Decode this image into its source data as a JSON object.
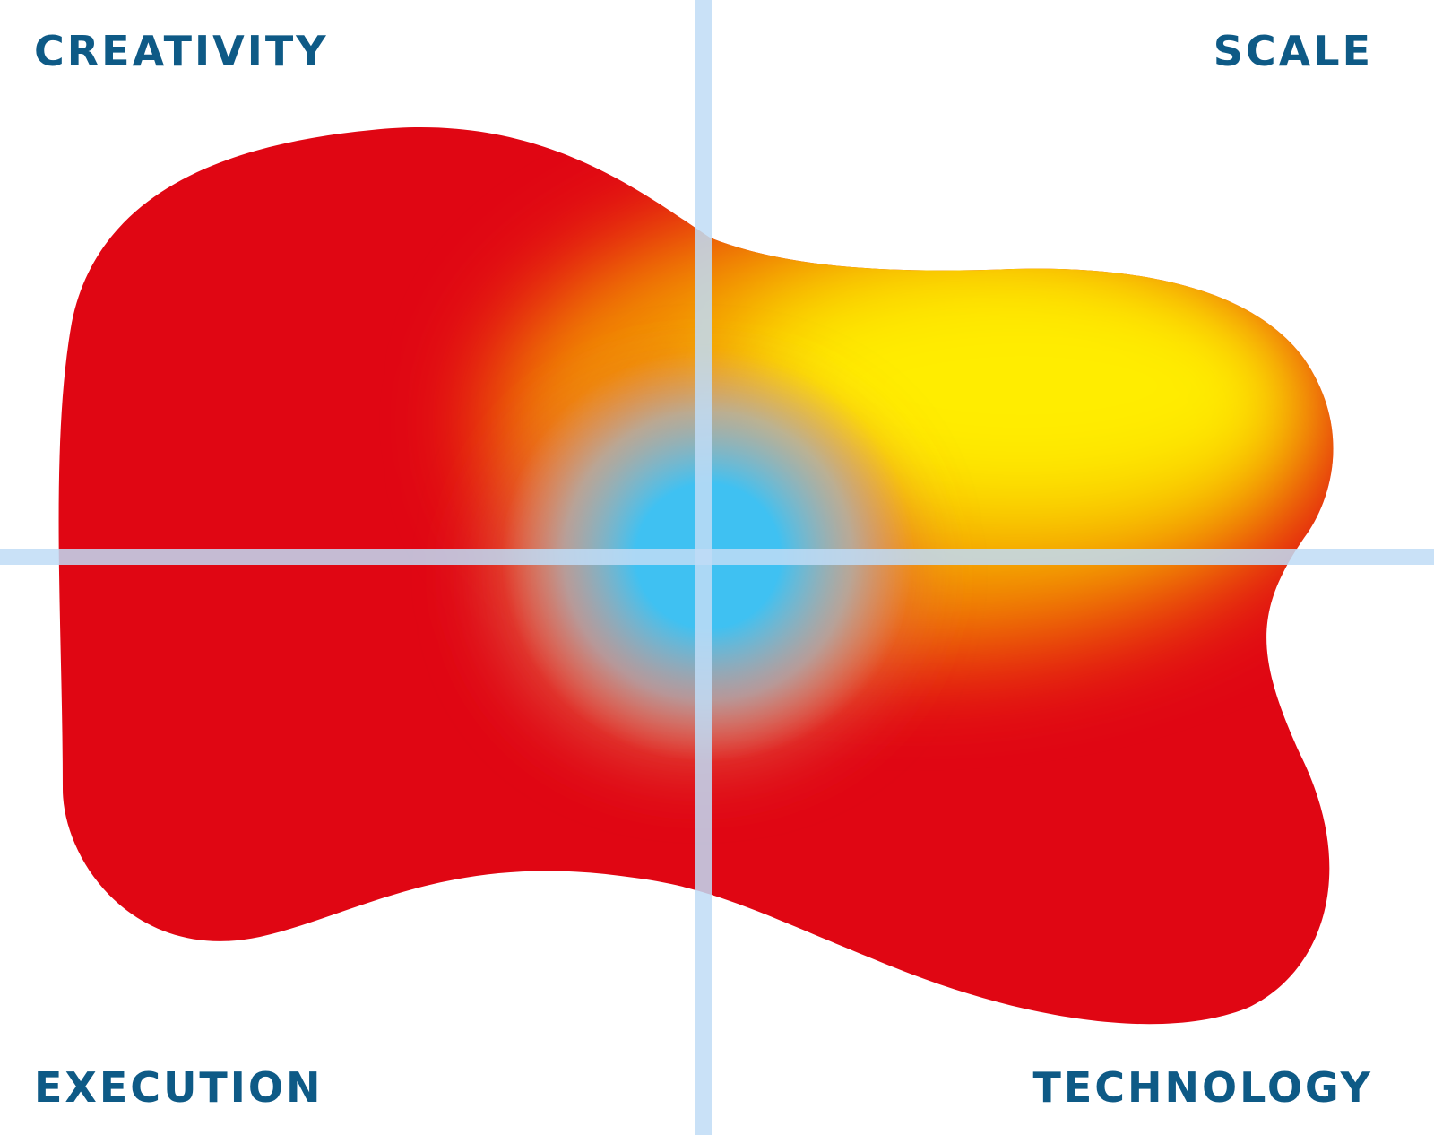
{
  "quadrants": {
    "top_left": "CREATIVITY",
    "top_right": "SCALE",
    "bottom_left": "EXECUTION",
    "bottom_right": "TECHNOLOGY"
  },
  "colors": {
    "label": "#0e5a86",
    "axis": "#bfdcf6",
    "red": "#e00613",
    "yellow": "#ffed00",
    "orange": "#f29100",
    "blue": "#3fc1f2"
  }
}
